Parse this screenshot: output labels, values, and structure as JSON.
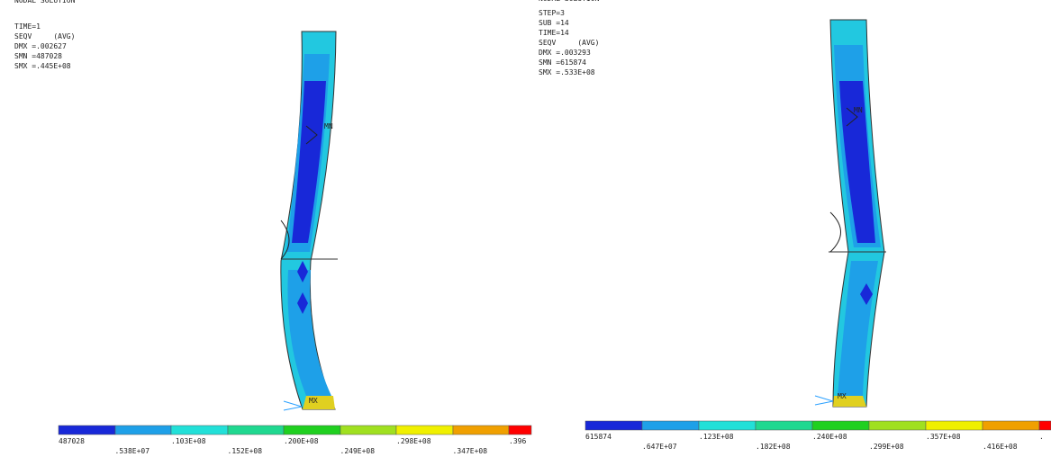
{
  "panels": [
    {
      "header": [
        "NODAL SOLUTION",
        "TIME=1",
        "SEQV     (AVG)",
        "DMX =.002627",
        "SMN =487028",
        "SMX =.445E+08"
      ],
      "markers": [
        "MN",
        "MX"
      ],
      "legend": [
        "487028",
        ".538E+07",
        ".103E+08",
        ".152E+08",
        ".200E+08",
        ".249E+08",
        ".298E+08",
        ".347E+08",
        ".396"
      ]
    },
    {
      "header": [
        "NODAL SOLUTION",
        "STEP=3",
        "SUB =14",
        "TIME=14",
        "SEQV     (AVG)",
        "DMX =.003293",
        "SMN =615874",
        "SMX =.533E+08"
      ],
      "markers": [
        "MN",
        "MX"
      ],
      "legend": [
        "615874",
        ".647E+07",
        ".123E+08",
        ".182E+08",
        ".240E+08",
        ".299E+08",
        ".357E+08",
        ".416E+08",
        "."
      ]
    }
  ]
}
